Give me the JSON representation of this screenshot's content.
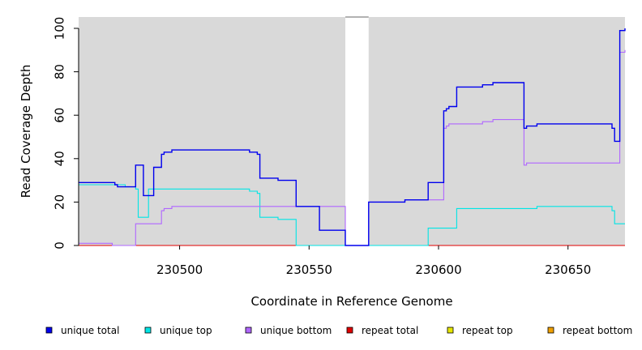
{
  "chart_data": {
    "type": "line",
    "xlabel": "Coordinate in Reference Genome",
    "ylabel": "Read Coverage Depth",
    "xlim": [
      230461,
      230672
    ],
    "ylim": [
      0,
      100
    ],
    "x_ticks": [
      230500,
      230550,
      230600,
      230650
    ],
    "y_ticks": [
      0,
      20,
      40,
      60,
      80,
      100
    ],
    "grid": false,
    "background_color": "#d9d9d9",
    "gap_region": [
      230564,
      230573
    ],
    "legend_position": "bottom",
    "series": [
      {
        "name": "unique total",
        "color": "#0000ee",
        "points": [
          [
            230461,
            29
          ],
          [
            230473,
            29
          ],
          [
            230475,
            28
          ],
          [
            230476,
            27
          ],
          [
            230479,
            27
          ],
          [
            230480,
            27
          ],
          [
            230483,
            37
          ],
          [
            230486,
            23
          ],
          [
            230490,
            36
          ],
          [
            230493,
            42
          ],
          [
            230494,
            43
          ],
          [
            230497,
            44
          ],
          [
            230512,
            44
          ],
          [
            230524,
            44
          ],
          [
            230527,
            43
          ],
          [
            230530,
            42
          ],
          [
            230531,
            31
          ],
          [
            230538,
            30
          ],
          [
            230545,
            18
          ],
          [
            230554,
            7
          ],
          [
            230564,
            0
          ],
          [
            230573,
            20
          ],
          [
            230587,
            21
          ],
          [
            230596,
            29
          ],
          [
            230602,
            62
          ],
          [
            230603,
            63
          ],
          [
            230604,
            64
          ],
          [
            230607,
            73
          ],
          [
            230617,
            74
          ],
          [
            230621,
            75
          ],
          [
            230633,
            54
          ],
          [
            230634,
            55
          ],
          [
            230638,
            56
          ],
          [
            230652,
            56
          ],
          [
            230667,
            54
          ],
          [
            230668,
            48
          ],
          [
            230670,
            99
          ],
          [
            230672,
            100
          ]
        ]
      },
      {
        "name": "unique top",
        "color": "#00e5e5",
        "points": [
          [
            230461,
            28
          ],
          [
            230479,
            27
          ],
          [
            230480,
            27
          ],
          [
            230483,
            26
          ],
          [
            230484,
            13
          ],
          [
            230488,
            26
          ],
          [
            230512,
            26
          ],
          [
            230527,
            25
          ],
          [
            230530,
            24
          ],
          [
            230531,
            13
          ],
          [
            230538,
            12
          ],
          [
            230545,
            0
          ],
          [
            230564,
            0
          ],
          [
            230596,
            8
          ],
          [
            230607,
            17
          ],
          [
            230635,
            17
          ],
          [
            230638,
            18
          ],
          [
            230660,
            18
          ],
          [
            230667,
            16
          ],
          [
            230668,
            10
          ],
          [
            230672,
            10
          ]
        ]
      },
      {
        "name": "unique bottom",
        "color": "#b066ff",
        "points": [
          [
            230461,
            1
          ],
          [
            230474,
            0
          ],
          [
            230480,
            0
          ],
          [
            230481,
            0
          ],
          [
            230483,
            10
          ],
          [
            230493,
            16
          ],
          [
            230494,
            17
          ],
          [
            230497,
            18
          ],
          [
            230545,
            18
          ],
          [
            230564,
            0
          ],
          [
            230573,
            20
          ],
          [
            230587,
            21
          ],
          [
            230596,
            21
          ],
          [
            230602,
            54
          ],
          [
            230603,
            55
          ],
          [
            230604,
            56
          ],
          [
            230617,
            57
          ],
          [
            230621,
            58
          ],
          [
            230633,
            37
          ],
          [
            230634,
            38
          ],
          [
            230670,
            89
          ],
          [
            230672,
            90
          ]
        ]
      },
      {
        "name": "repeat total",
        "color": "#e00000",
        "points": [
          [
            230461,
            0
          ],
          [
            230672,
            0
          ]
        ]
      },
      {
        "name": "repeat top",
        "color": "#e6e600",
        "points": [
          [
            230461,
            0
          ],
          [
            230672,
            0
          ]
        ]
      },
      {
        "name": "repeat bottom",
        "color": "#f0a000",
        "points": [
          [
            230461,
            0
          ],
          [
            230672,
            0
          ]
        ]
      }
    ]
  }
}
